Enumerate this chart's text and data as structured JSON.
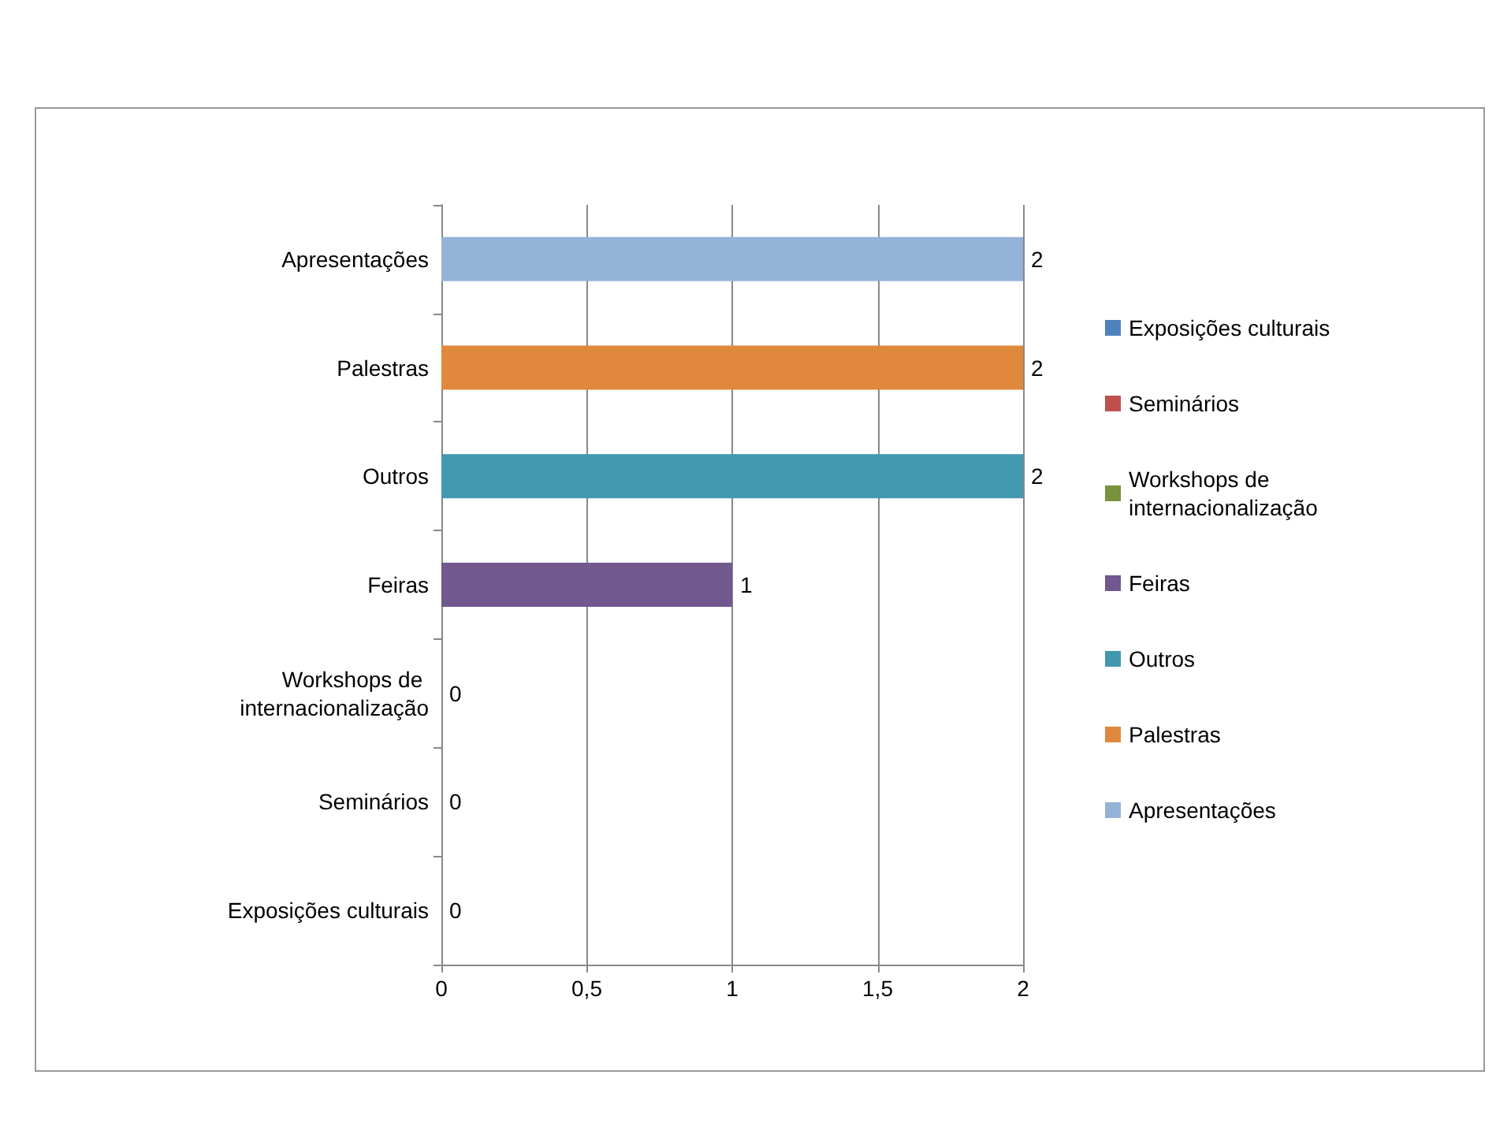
{
  "chart_data": {
    "type": "bar",
    "orientation": "horizontal",
    "categories": [
      "Apresentações",
      "Palestras",
      "Outros",
      "Feiras",
      "Workshops de internacionalização",
      "Seminários",
      "Exposições culturais"
    ],
    "series": [
      {
        "name": "Exposições culturais",
        "color": "#4f81bd",
        "values": [
          null,
          null,
          null,
          null,
          null,
          null,
          0
        ]
      },
      {
        "name": "Seminários",
        "color": "#c0504d",
        "values": [
          null,
          null,
          null,
          null,
          null,
          0,
          null
        ]
      },
      {
        "name": "Workshops de internacionalização",
        "color": "#77933c",
        "values": [
          null,
          null,
          null,
          null,
          0,
          null,
          null
        ]
      },
      {
        "name": "Feiras",
        "color": "#71588f",
        "values": [
          null,
          null,
          null,
          1,
          null,
          null,
          null
        ]
      },
      {
        "name": "Outros",
        "color": "#4198af",
        "values": [
          null,
          null,
          2,
          null,
          null,
          null,
          null
        ]
      },
      {
        "name": "Palestras",
        "color": "#e0893c",
        "values": [
          null,
          2,
          null,
          null,
          null,
          null,
          null
        ]
      },
      {
        "name": "Apresentações",
        "color": "#95b3d7",
        "values": [
          2,
          null,
          null,
          null,
          null,
          null,
          null
        ]
      }
    ],
    "xlim": [
      0,
      2
    ],
    "xticks": [
      0,
      {
        "value": 0.5,
        "label": "0,5"
      },
      1,
      {
        "value": 1.5,
        "label": "1,5"
      },
      2
    ],
    "grid": "x",
    "legend": "right",
    "data_labels": true
  }
}
